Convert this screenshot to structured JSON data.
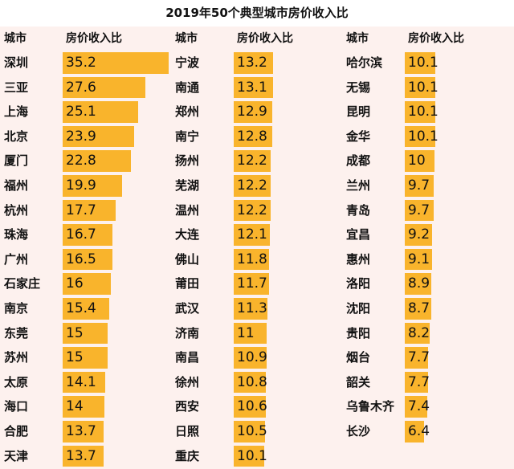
{
  "title": "2019年50个典型城市房价收入比",
  "table": {
    "headers": [
      "城市",
      "房价收入比"
    ],
    "groups": [
      {
        "rows": [
          {
            "city": "深圳",
            "ratio": 35.2
          },
          {
            "city": "三亚",
            "ratio": 27.6
          },
          {
            "city": "上海",
            "ratio": 25.1
          },
          {
            "city": "北京",
            "ratio": 23.9
          },
          {
            "city": "厦门",
            "ratio": 22.8
          },
          {
            "city": "福州",
            "ratio": 19.9
          },
          {
            "city": "杭州",
            "ratio": 17.7
          },
          {
            "city": "珠海",
            "ratio": 16.7
          },
          {
            "city": "广州",
            "ratio": 16.5
          },
          {
            "city": "石家庄",
            "ratio": 16
          },
          {
            "city": "南京",
            "ratio": 15.4
          },
          {
            "city": "东莞",
            "ratio": 15
          },
          {
            "city": "苏州",
            "ratio": 15
          },
          {
            "city": "太原",
            "ratio": 14.1
          },
          {
            "city": "海口",
            "ratio": 14
          },
          {
            "city": "合肥",
            "ratio": 13.7
          },
          {
            "city": "天津",
            "ratio": 13.7
          }
        ]
      },
      {
        "rows": [
          {
            "city": "宁波",
            "ratio": 13.2
          },
          {
            "city": "南通",
            "ratio": 13.1
          },
          {
            "city": "郑州",
            "ratio": 12.9
          },
          {
            "city": "南宁",
            "ratio": 12.8
          },
          {
            "city": "扬州",
            "ratio": 12.2
          },
          {
            "city": "芜湖",
            "ratio": 12.2
          },
          {
            "city": "温州",
            "ratio": 12.2
          },
          {
            "city": "大连",
            "ratio": 12.1
          },
          {
            "city": "佛山",
            "ratio": 11.8
          },
          {
            "city": "莆田",
            "ratio": 11.7
          },
          {
            "city": "武汉",
            "ratio": 11.3
          },
          {
            "city": "济南",
            "ratio": 11
          },
          {
            "city": "南昌",
            "ratio": 10.9
          },
          {
            "city": "徐州",
            "ratio": 10.8
          },
          {
            "city": "西安",
            "ratio": 10.6
          },
          {
            "city": "日照",
            "ratio": 10.5
          },
          {
            "city": "重庆",
            "ratio": 10.1
          }
        ]
      },
      {
        "rows": [
          {
            "city": "哈尔滨",
            "ratio": 10.1
          },
          {
            "city": "无锡",
            "ratio": 10.1
          },
          {
            "city": "昆明",
            "ratio": 10.1
          },
          {
            "city": "金华",
            "ratio": 10.1
          },
          {
            "city": "成都",
            "ratio": 10
          },
          {
            "city": "兰州",
            "ratio": 9.7
          },
          {
            "city": "青岛",
            "ratio": 9.7
          },
          {
            "city": "宜昌",
            "ratio": 9.2
          },
          {
            "city": "惠州",
            "ratio": 9.1
          },
          {
            "city": "洛阳",
            "ratio": 8.9
          },
          {
            "city": "沈阳",
            "ratio": 8.7
          },
          {
            "city": "贵阳",
            "ratio": 8.2
          },
          {
            "city": "烟台",
            "ratio": 7.7
          },
          {
            "city": "韶关",
            "ratio": 7.7
          },
          {
            "city": "乌鲁木齐",
            "ratio": 7.4
          },
          {
            "city": "长沙",
            "ratio": 6.4
          }
        ]
      }
    ]
  }
}
